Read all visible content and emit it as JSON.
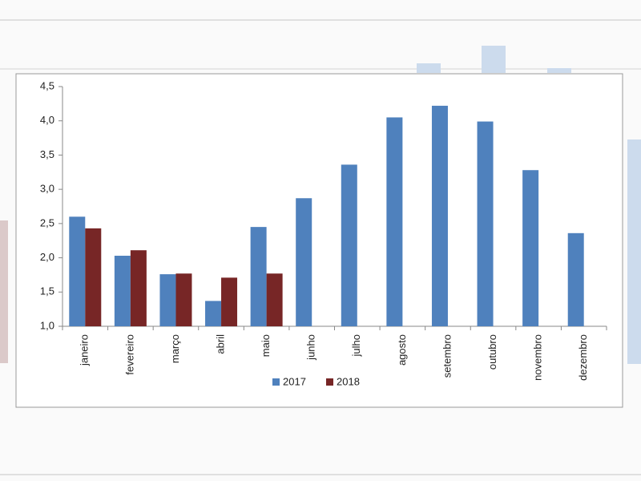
{
  "chart_data": {
    "type": "bar",
    "categories": [
      "janeiro",
      "fevereiro",
      "março",
      "abril",
      "maio",
      "junho",
      "julho",
      "agosto",
      "setembro",
      "outubro",
      "novembro",
      "dezembro"
    ],
    "series": [
      {
        "name": "2017",
        "color": "#4f81bd",
        "values": [
          2.6,
          2.03,
          1.76,
          1.37,
          2.45,
          2.87,
          3.36,
          4.05,
          4.22,
          3.99,
          3.28,
          2.36
        ]
      },
      {
        "name": "2018",
        "color": "#772626",
        "values": [
          2.43,
          2.11,
          1.77,
          1.71,
          1.77,
          null,
          null,
          null,
          null,
          null,
          null,
          null
        ]
      }
    ],
    "ylim": [
      1.0,
      4.5
    ],
    "yticks": [
      {
        "value": 1.0,
        "label": "1,0"
      },
      {
        "value": 1.5,
        "label": "1,5"
      },
      {
        "value": 2.0,
        "label": "2,0"
      },
      {
        "value": 2.5,
        "label": "2,5"
      },
      {
        "value": 3.0,
        "label": "3,0"
      },
      {
        "value": 3.5,
        "label": "3,5"
      },
      {
        "value": 4.0,
        "label": "4,0"
      },
      {
        "value": 4.5,
        "label": "4,5"
      }
    ],
    "grid": false,
    "legend": "bottom"
  }
}
